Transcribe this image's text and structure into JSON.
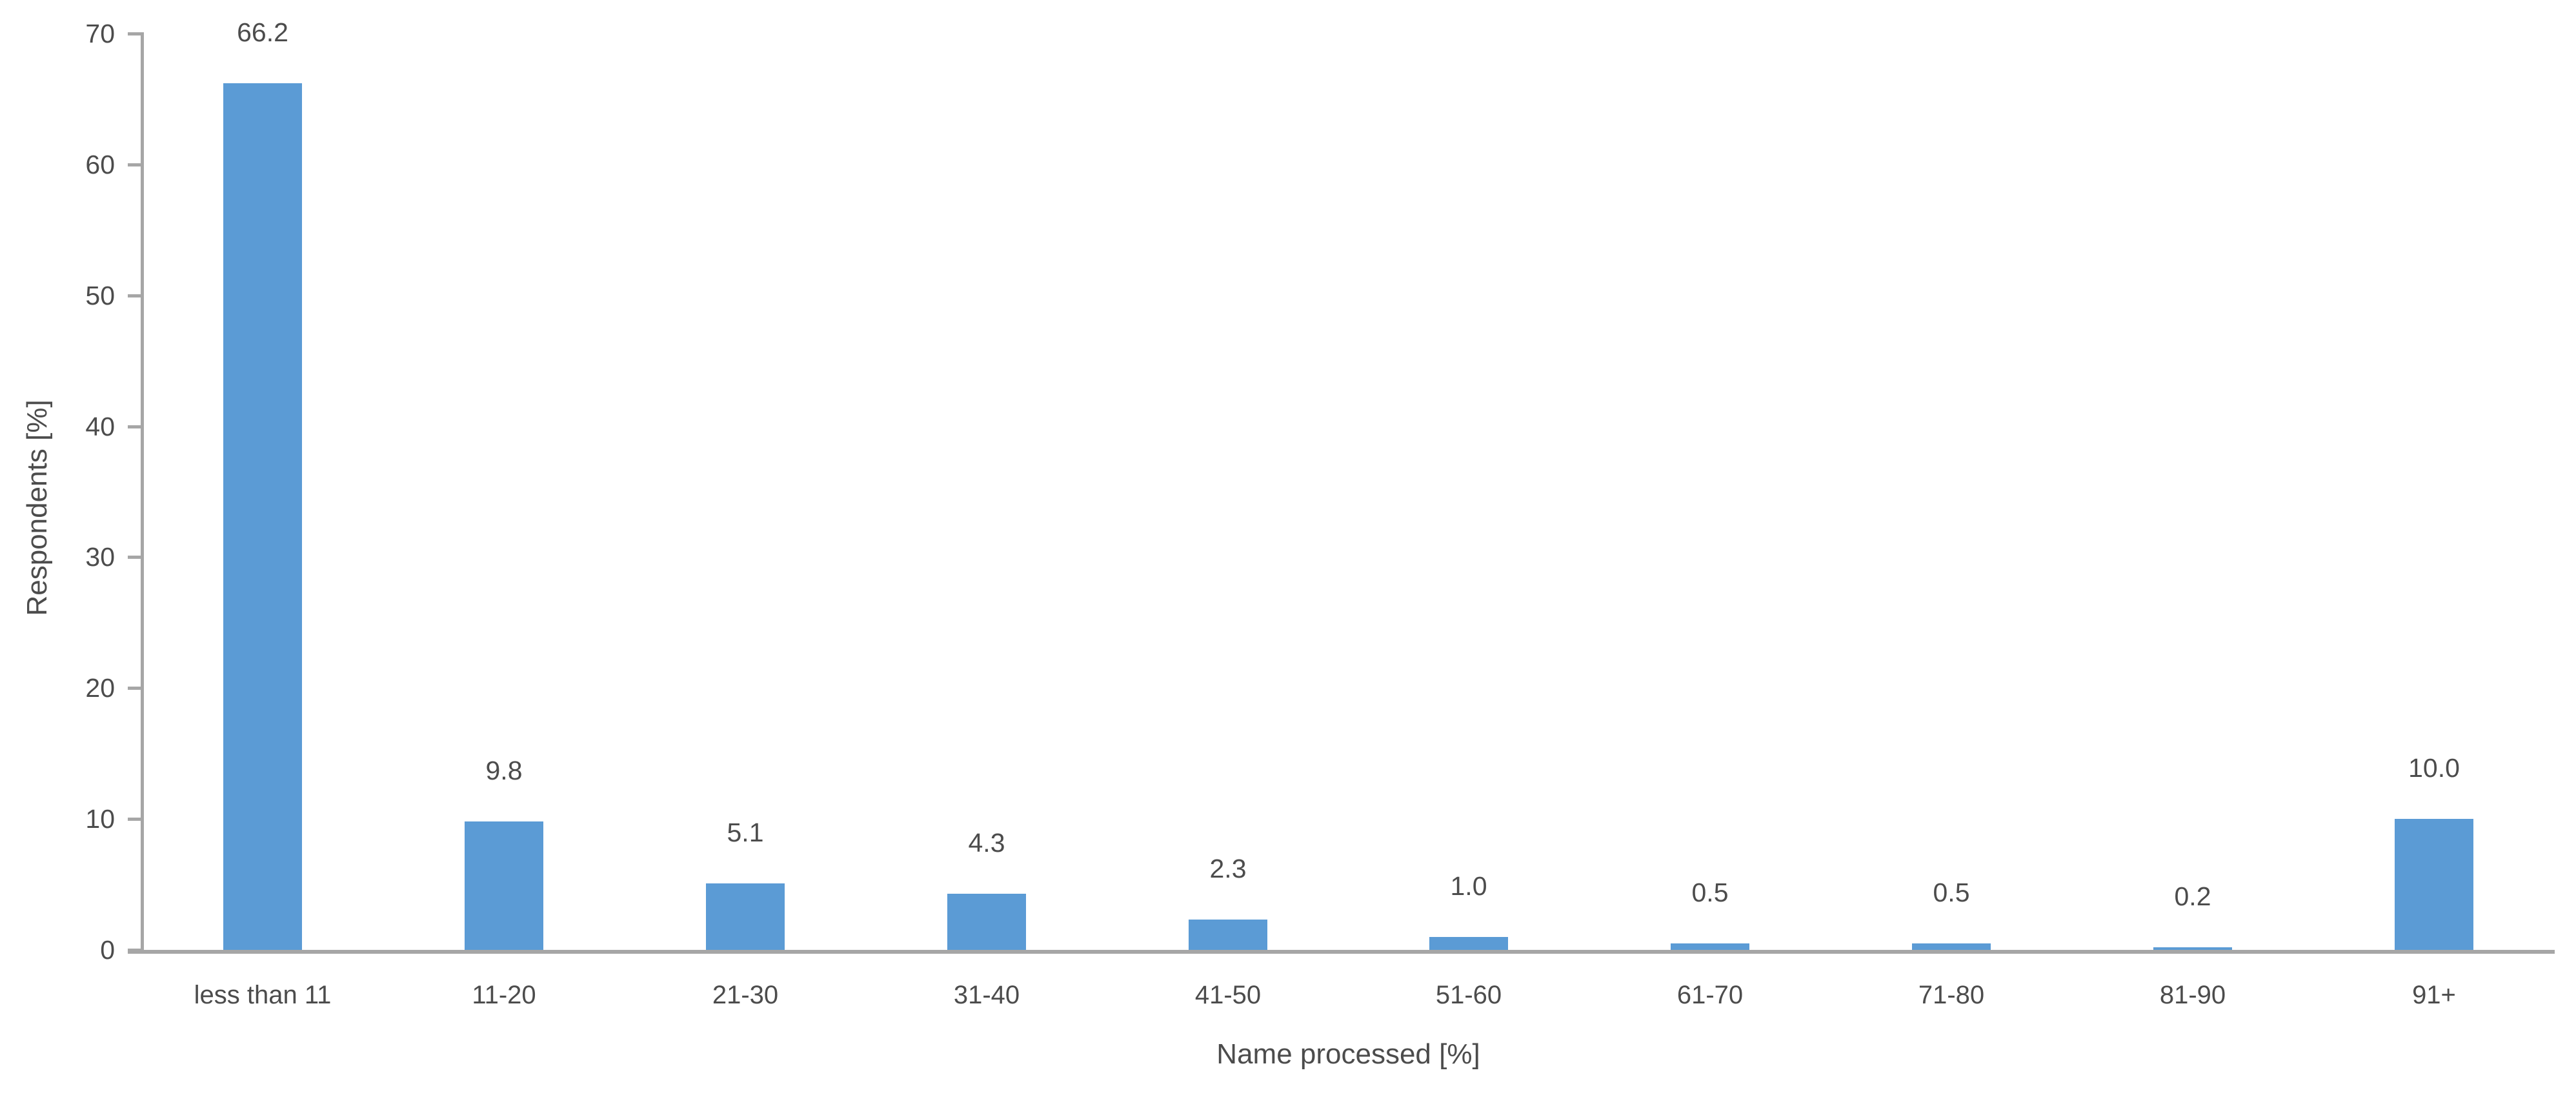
{
  "chart_data": {
    "type": "bar",
    "title": "",
    "categories": [
      "less than 11",
      "11-20",
      "21-30",
      "31-40",
      "41-50",
      "51-60",
      "61-70",
      "71-80",
      "81-90",
      "91+"
    ],
    "values": [
      66.2,
      9.8,
      5.1,
      4.3,
      2.3,
      1.0,
      0.5,
      0.5,
      0.2,
      10.0
    ],
    "value_labels": [
      "66.2",
      "9.8",
      "5.1",
      "4.3",
      "2.3",
      "1.0",
      "0.5",
      "0.5",
      "0.2",
      "10.0"
    ],
    "xlabel": "Name processed [%]",
    "ylabel": "Respondents [%]",
    "ylim": [
      0,
      70
    ],
    "yticks": [
      0,
      10,
      20,
      30,
      40,
      50,
      60,
      70
    ],
    "grid": false,
    "legend": "none",
    "bar_color": "#5b9bd5",
    "axis_color": "#a6a6a6",
    "text_color": "#4c4c4c"
  }
}
